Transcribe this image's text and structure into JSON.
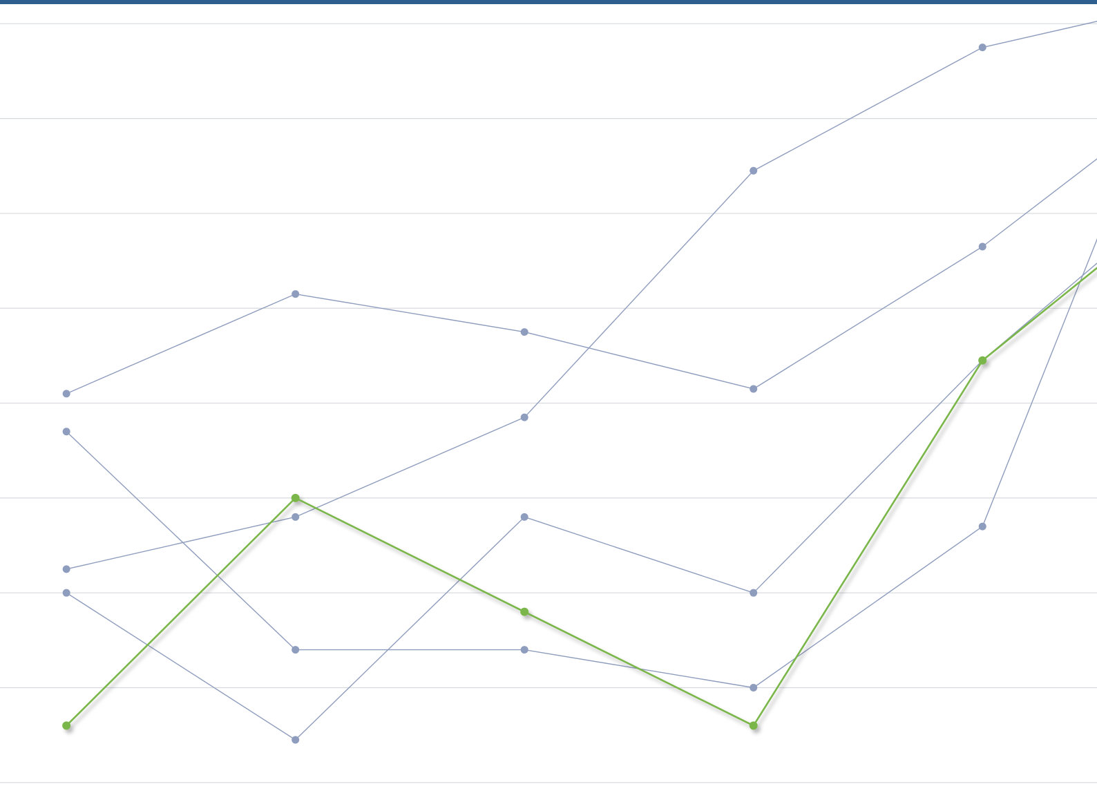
{
  "colors": {
    "top_bar": "#2f5f8f",
    "grid": "#d6d9de",
    "series_muted": "#8e9cbd",
    "series_highlight": "#7ab648"
  },
  "chart_data": {
    "type": "line",
    "title": "",
    "xlabel": "",
    "ylabel": "",
    "grid": true,
    "legend": "none",
    "x": [
      0,
      1,
      2,
      3,
      4,
      5
    ],
    "xlim": [
      -0.29,
      4.5
    ],
    "ylim": [
      -0.3,
      8.25
    ],
    "series": [
      {
        "highlight": false,
        "values": [
          4.1,
          5.15,
          4.75,
          4.15,
          5.65,
          7.5
        ]
      },
      {
        "highlight": false,
        "values": [
          2.25,
          2.8,
          3.85,
          6.45,
          7.75,
          8.3
        ]
      },
      {
        "highlight": false,
        "values": [
          3.7,
          1.4,
          1.4,
          1.0,
          2.7,
          8.75
        ]
      },
      {
        "highlight": false,
        "values": [
          2.0,
          0.45,
          2.8,
          2.0,
          4.45,
          6.5
        ]
      },
      {
        "highlight": true,
        "values": [
          0.6,
          3.0,
          1.8,
          0.6,
          4.45,
          6.4
        ]
      }
    ]
  }
}
